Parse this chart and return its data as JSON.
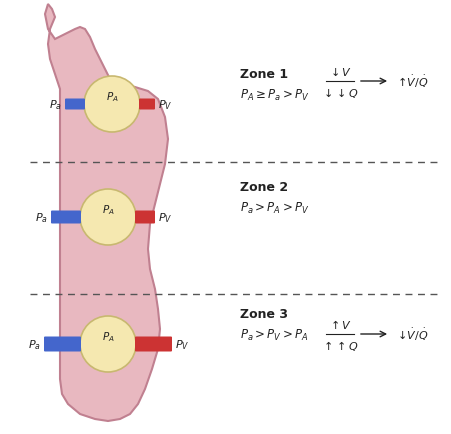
{
  "bg_color": "#ffffff",
  "lung_color": "#e8b8c0",
  "lung_stroke": "#c08090",
  "alveolus_color": "#f5e8b0",
  "alveolus_stroke": "#c8b870",
  "blue_bar": "#4466cc",
  "red_bar": "#cc3333",
  "dashed_line_color": "#555555",
  "text_color": "#222222",
  "zone1_title": "Zone 1",
  "zone1_eq": "$P_A \\geq P_a > P_V$",
  "zone2_title": "Zone 2",
  "zone2_eq": "$P_a > P_A > P_V$",
  "zone3_title": "Zone 3",
  "zone3_eq": "$P_a > P_V > P_A$",
  "zone1_frac_num": "$\\downarrow V$",
  "zone1_frac_den": "$\\downarrow\\downarrow Q$",
  "zone1_result": "$\\uparrow \\dot{V}/\\dot{Q}$",
  "zone3_frac_num": "$\\uparrow V$",
  "zone3_frac_den": "$\\uparrow\\uparrow Q$",
  "zone3_result": "$\\downarrow \\dot{V}/\\dot{Q}$"
}
